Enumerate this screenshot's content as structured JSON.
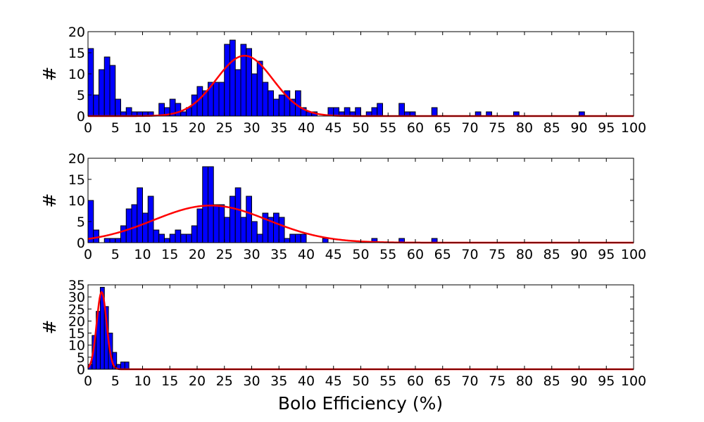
{
  "chart_data": [
    {
      "type": "bar",
      "ylabel": "#",
      "xlim": [
        0,
        100
      ],
      "ylim": [
        0,
        20
      ],
      "bin_width": 1,
      "x_ticks": [
        0,
        5,
        10,
        15,
        20,
        25,
        30,
        35,
        40,
        45,
        50,
        55,
        60,
        65,
        70,
        75,
        80,
        85,
        90,
        95,
        100
      ],
      "y_ticks": [
        0,
        5,
        10,
        15,
        20
      ],
      "bin_starts": [
        0,
        1,
        2,
        3,
        4,
        5,
        6,
        7,
        8,
        9,
        10,
        11,
        12,
        13,
        14,
        15,
        16,
        17,
        18,
        19,
        20,
        21,
        22,
        23,
        24,
        25,
        26,
        27,
        28,
        29,
        30,
        31,
        32,
        33,
        34,
        35,
        36,
        37,
        38,
        39,
        40,
        41,
        42,
        43,
        44,
        45,
        46,
        47,
        48,
        49,
        50,
        51,
        52,
        53,
        57,
        58,
        59,
        63,
        71,
        73,
        78,
        90
      ],
      "counts": [
        16,
        5,
        11,
        14,
        12,
        4,
        1,
        2,
        1,
        1,
        1,
        1,
        0,
        3,
        2,
        4,
        3,
        1,
        2,
        5,
        7,
        6,
        8,
        8,
        8,
        17,
        18,
        11,
        17,
        16,
        10,
        13,
        8,
        6,
        4,
        5,
        6,
        4,
        6,
        2,
        1,
        1,
        0,
        0,
        2,
        2,
        1,
        2,
        1,
        2,
        0,
        1,
        2,
        3,
        3,
        1,
        1,
        2,
        1,
        1,
        1,
        1
      ],
      "bar_color": "#0000ff",
      "fit": {
        "type": "gaussian",
        "amplitude": 14.3,
        "mean": 28.7,
        "sigma": 5.2,
        "color": "#ff0000"
      }
    },
    {
      "type": "bar",
      "ylabel": "#",
      "xlim": [
        0,
        100
      ],
      "ylim": [
        0,
        20
      ],
      "bin_width": 1,
      "x_ticks": [
        0,
        5,
        10,
        15,
        20,
        25,
        30,
        35,
        40,
        45,
        50,
        55,
        60,
        65,
        70,
        75,
        80,
        85,
        90,
        95,
        100
      ],
      "y_ticks": [
        0,
        5,
        10,
        15,
        20
      ],
      "bin_starts": [
        0,
        1,
        2,
        3,
        4,
        5,
        6,
        7,
        8,
        9,
        10,
        11,
        12,
        13,
        14,
        15,
        16,
        17,
        18,
        19,
        20,
        21,
        22,
        23,
        24,
        25,
        26,
        27,
        28,
        29,
        30,
        31,
        32,
        33,
        34,
        35,
        36,
        37,
        38,
        39,
        40,
        43,
        52,
        57,
        63
      ],
      "counts": [
        10,
        3,
        0,
        1,
        1,
        1,
        4,
        8,
        9,
        13,
        7,
        11,
        3,
        2,
        1,
        2,
        3,
        2,
        2,
        4,
        8,
        18,
        18,
        9,
        9,
        6,
        11,
        13,
        6,
        11,
        5,
        2,
        7,
        6,
        7,
        6,
        1,
        2,
        2,
        2,
        0,
        1,
        1,
        1,
        1
      ],
      "bar_color": "#0000ff",
      "fit": {
        "type": "gaussian",
        "amplitude": 8.8,
        "mean": 22.5,
        "sigma": 10.5,
        "color": "#ff0000"
      }
    },
    {
      "type": "bar",
      "ylabel": "#",
      "xlabel": "Bolo Efficiency (%)",
      "xlim": [
        0,
        100
      ],
      "ylim": [
        0,
        35
      ],
      "bin_width": 0.75,
      "x_ticks": [
        0,
        5,
        10,
        15,
        20,
        25,
        30,
        35,
        40,
        45,
        50,
        55,
        60,
        65,
        70,
        75,
        80,
        85,
        90,
        95,
        100
      ],
      "y_ticks": [
        0,
        5,
        10,
        15,
        20,
        25,
        30,
        35
      ],
      "bin_starts": [
        0,
        0.75,
        1.5,
        2.25,
        3,
        3.75,
        4.5,
        5.25,
        6,
        6.75
      ],
      "counts": [
        2,
        14,
        24,
        34,
        26,
        15,
        7,
        2,
        3,
        3
      ],
      "bar_color": "#0000ff",
      "fit": {
        "type": "gaussian",
        "amplitude": 32,
        "mean": 2.5,
        "sigma": 0.9,
        "color": "#ff0000"
      }
    }
  ]
}
